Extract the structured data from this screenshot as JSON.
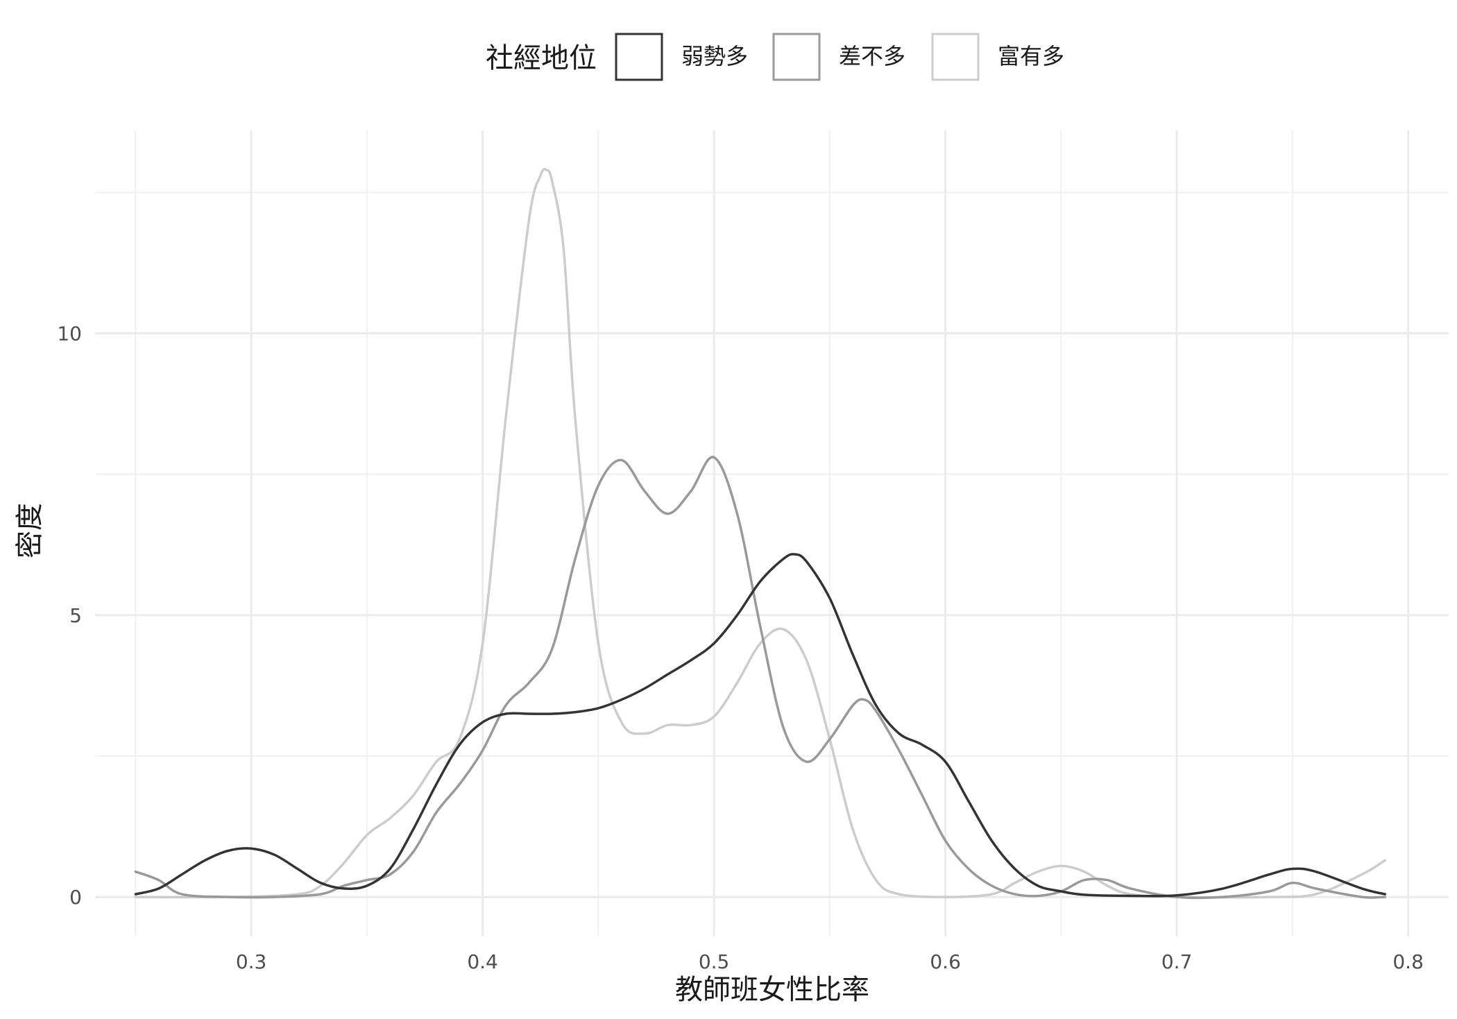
{
  "chart_data": {
    "type": "line",
    "subtype": "density",
    "xlabel": "教師班女性比率",
    "ylabel": "密度",
    "xlim": [
      0.2325,
      0.8175
    ],
    "ylim": [
      -0.7,
      13.6
    ],
    "x_ticks": [
      0.3,
      0.4,
      0.5,
      0.6,
      0.7,
      0.8
    ],
    "x_tick_labels": [
      "0.3",
      "0.4",
      "0.5",
      "0.6",
      "0.7",
      "0.8"
    ],
    "x_minor_gridlines": [
      0.25,
      0.35,
      0.45,
      0.55,
      0.65,
      0.75
    ],
    "y_ticks": [
      0,
      5,
      10
    ],
    "y_tick_labels": [
      "0",
      "5",
      "10"
    ],
    "y_minor_gridlines": [
      2.5,
      7.5,
      12.5
    ],
    "grid": true,
    "legend": {
      "title": "社經地位",
      "placement": "top"
    },
    "series": [
      {
        "name": "弱勢多",
        "color": "#333333",
        "x": [
          0.25,
          0.26,
          0.27,
          0.28,
          0.29,
          0.3,
          0.31,
          0.32,
          0.33,
          0.34,
          0.35,
          0.36,
          0.37,
          0.38,
          0.39,
          0.4,
          0.41,
          0.42,
          0.43,
          0.44,
          0.45,
          0.46,
          0.47,
          0.48,
          0.49,
          0.5,
          0.51,
          0.52,
          0.53,
          0.535,
          0.54,
          0.55,
          0.56,
          0.57,
          0.58,
          0.59,
          0.6,
          0.61,
          0.62,
          0.63,
          0.64,
          0.65,
          0.66,
          0.68,
          0.7,
          0.72,
          0.74,
          0.75,
          0.76,
          0.78,
          0.79
        ],
        "y": [
          0.05,
          0.15,
          0.4,
          0.65,
          0.82,
          0.86,
          0.75,
          0.5,
          0.25,
          0.15,
          0.2,
          0.5,
          1.2,
          2.0,
          2.7,
          3.1,
          3.25,
          3.25,
          3.25,
          3.28,
          3.35,
          3.5,
          3.7,
          3.95,
          4.2,
          4.5,
          5.0,
          5.6,
          6.0,
          6.08,
          5.95,
          5.3,
          4.3,
          3.4,
          2.9,
          2.7,
          2.4,
          1.7,
          1.0,
          0.5,
          0.2,
          0.1,
          0.04,
          0.02,
          0.03,
          0.15,
          0.4,
          0.5,
          0.45,
          0.15,
          0.05
        ]
      },
      {
        "name": "差不多",
        "color": "#999999",
        "x": [
          0.25,
          0.26,
          0.27,
          0.29,
          0.31,
          0.33,
          0.34,
          0.35,
          0.36,
          0.37,
          0.38,
          0.39,
          0.4,
          0.41,
          0.42,
          0.43,
          0.44,
          0.45,
          0.46,
          0.47,
          0.48,
          0.49,
          0.5,
          0.51,
          0.52,
          0.53,
          0.54,
          0.55,
          0.56,
          0.565,
          0.57,
          0.58,
          0.59,
          0.6,
          0.61,
          0.62,
          0.63,
          0.64,
          0.65,
          0.66,
          0.67,
          0.68,
          0.7,
          0.72,
          0.74,
          0.75,
          0.76,
          0.78,
          0.79
        ],
        "y": [
          0.45,
          0.3,
          0.05,
          0.0,
          0.0,
          0.05,
          0.2,
          0.3,
          0.4,
          0.8,
          1.5,
          2.0,
          2.6,
          3.4,
          3.8,
          4.4,
          6.0,
          7.3,
          7.75,
          7.2,
          6.8,
          7.2,
          7.8,
          6.8,
          4.8,
          3.0,
          2.4,
          2.8,
          3.4,
          3.5,
          3.3,
          2.6,
          1.8,
          1.0,
          0.5,
          0.2,
          0.05,
          0.02,
          0.1,
          0.3,
          0.3,
          0.15,
          0.0,
          0.0,
          0.1,
          0.25,
          0.15,
          0.0,
          0.0
        ]
      },
      {
        "name": "富有多",
        "color": "#cccccc",
        "x": [
          0.25,
          0.29,
          0.32,
          0.33,
          0.34,
          0.35,
          0.36,
          0.37,
          0.38,
          0.39,
          0.4,
          0.41,
          0.42,
          0.425,
          0.4275,
          0.43,
          0.435,
          0.44,
          0.45,
          0.46,
          0.47,
          0.48,
          0.49,
          0.5,
          0.51,
          0.52,
          0.53,
          0.54,
          0.55,
          0.56,
          0.57,
          0.58,
          0.6,
          0.62,
          0.63,
          0.64,
          0.65,
          0.66,
          0.67,
          0.68,
          0.7,
          0.74,
          0.76,
          0.78,
          0.79
        ],
        "y": [
          0.0,
          0.0,
          0.05,
          0.2,
          0.6,
          1.1,
          1.4,
          1.8,
          2.4,
          2.8,
          4.5,
          8.5,
          12.0,
          12.8,
          12.9,
          12.7,
          11.5,
          8.5,
          4.5,
          3.1,
          2.9,
          3.05,
          3.05,
          3.2,
          3.8,
          4.5,
          4.75,
          4.2,
          2.8,
          1.2,
          0.3,
          0.05,
          0.0,
          0.05,
          0.25,
          0.45,
          0.55,
          0.45,
          0.2,
          0.05,
          0.0,
          0.0,
          0.05,
          0.4,
          0.65
        ]
      }
    ]
  }
}
